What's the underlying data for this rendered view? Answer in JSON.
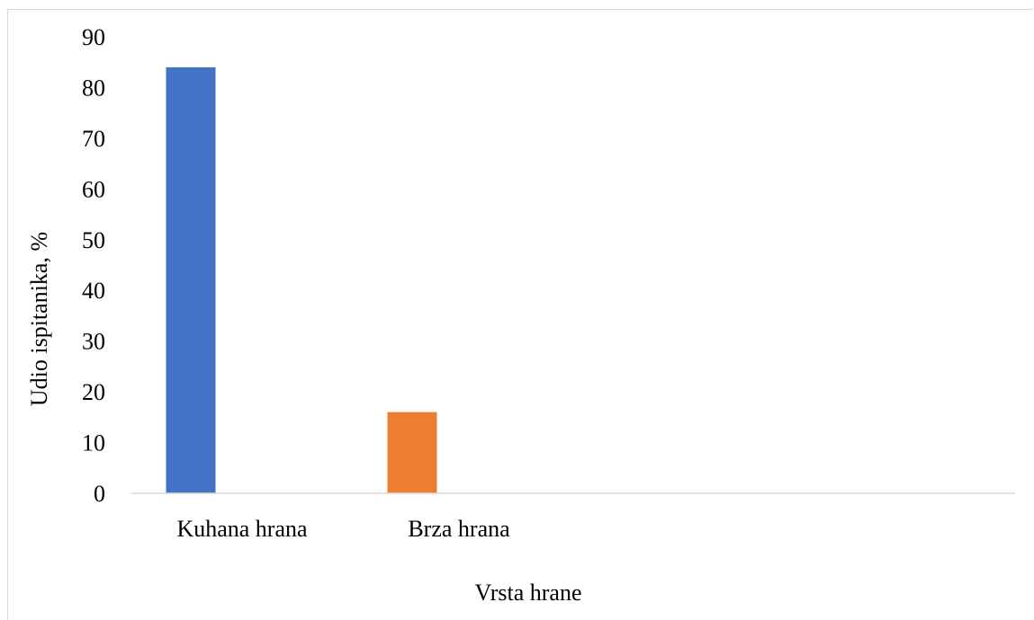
{
  "chart_data": {
    "type": "bar",
    "categories": [
      "Kuhana hrana",
      "Brza hrana"
    ],
    "values": [
      84,
      16
    ],
    "colors": [
      "#4472C4",
      "#ED7D31"
    ],
    "title": "",
    "xlabel": "Vrsta hrane",
    "ylabel": "Udio ispitanika, %",
    "ylim": [
      0,
      90
    ],
    "yticks": [
      0,
      10,
      20,
      30,
      40,
      50,
      60,
      70,
      80,
      90
    ],
    "grid": false,
    "legend": "none"
  }
}
